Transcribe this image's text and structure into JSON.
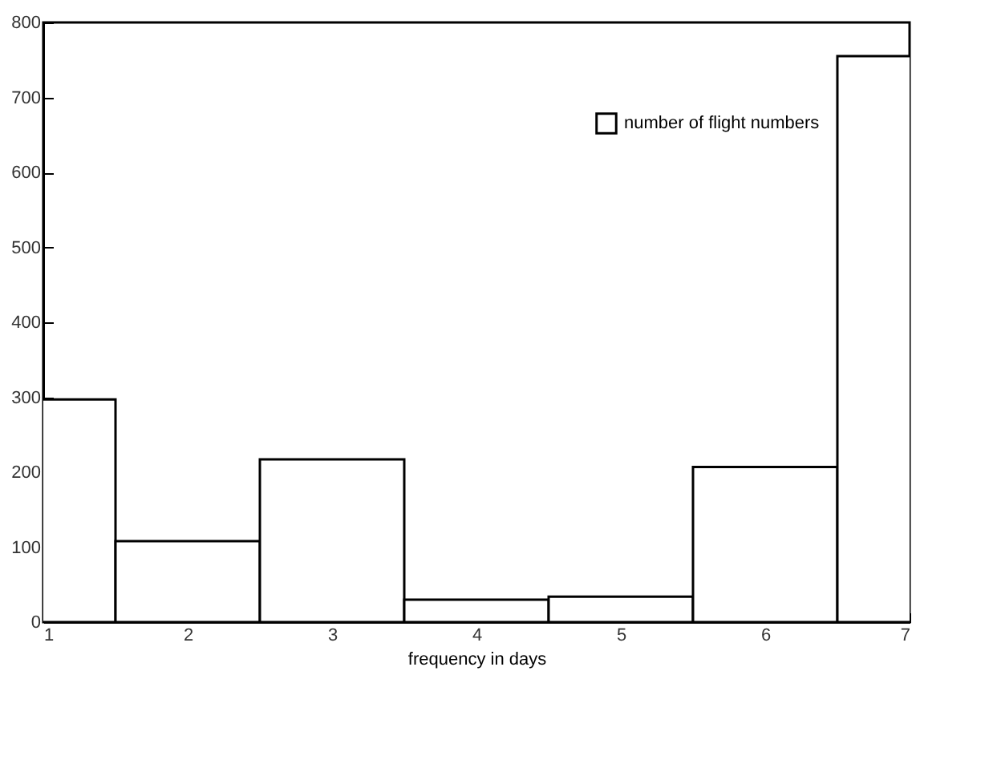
{
  "chart_data": {
    "type": "bar",
    "xlabel": "frequency in days",
    "x": [
      1,
      2,
      3,
      4,
      5,
      6,
      7
    ],
    "series": [
      {
        "name": "number of flight numbers",
        "color": "#000000",
        "values": [
          297,
          108,
          217,
          30,
          34,
          207,
          755
        ]
      }
    ],
    "xlim": [
      1,
      7
    ],
    "xticks": [
      1,
      2,
      3,
      4,
      5,
      6,
      7
    ],
    "ylim": [
      0,
      800
    ],
    "yticks": [
      0,
      100,
      200,
      300,
      400,
      500,
      600,
      700,
      800
    ],
    "legend": "top right"
  }
}
